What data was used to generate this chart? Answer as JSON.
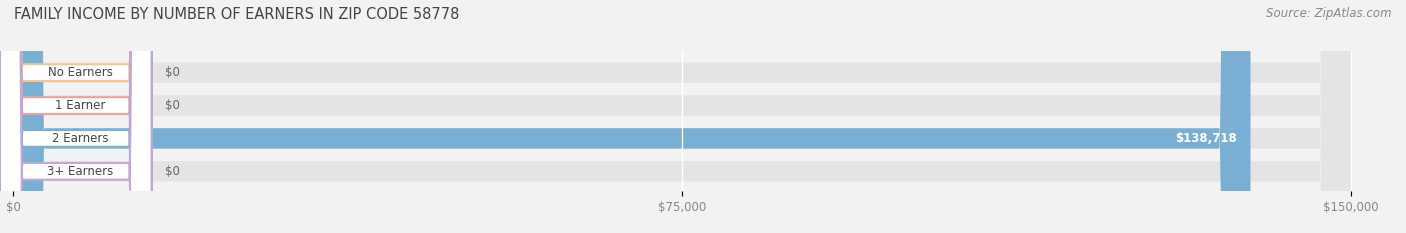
{
  "title": "FAMILY INCOME BY NUMBER OF EARNERS IN ZIP CODE 58778",
  "source": "Source: ZipAtlas.com",
  "categories": [
    "No Earners",
    "1 Earner",
    "2 Earners",
    "3+ Earners"
  ],
  "values": [
    0,
    0,
    138718,
    0
  ],
  "bar_colors": [
    "#f5c596",
    "#f0a0a0",
    "#7aafd4",
    "#c4a8d4"
  ],
  "value_labels": [
    "$0",
    "$0",
    "$138,718",
    "$0"
  ],
  "xlim": [
    0,
    150000
  ],
  "xticks": [
    0,
    75000,
    150000
  ],
  "xticklabels": [
    "$0",
    "$75,000",
    "$150,000"
  ],
  "background_color": "#f2f2f2",
  "bar_background_color": "#e4e4e4",
  "title_fontsize": 10.5,
  "source_fontsize": 8.5,
  "bar_height": 0.62,
  "bar_gap": 0.38
}
